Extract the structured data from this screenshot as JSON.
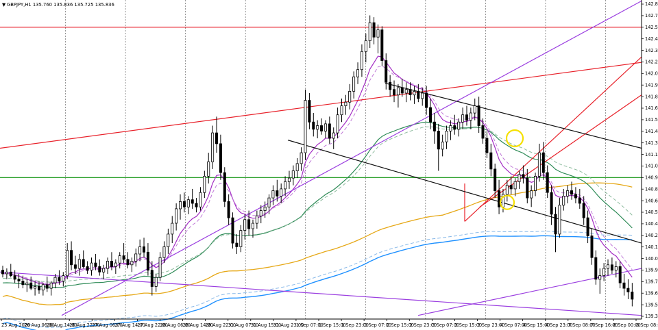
{
  "window": {
    "header_arrow": "▼",
    "header_text": "GBPJPY,H1  135.760 135.836 135.725 135.836"
  },
  "chart_data": {
    "type": "candlestick",
    "symbol": "GBPJPY",
    "timeframe": "H1",
    "ohlc_header": {
      "open": 135.76,
      "high": 135.836,
      "low": 135.725,
      "close": 135.836
    },
    "ylim": [
      139.39,
      142.845
    ],
    "yticks": [
      "142.845",
      "142.715",
      "142.590",
      "142.460",
      "142.335",
      "142.205",
      "142.075",
      "141.950",
      "141.820",
      "141.695",
      "141.565",
      "141.440",
      "141.310",
      "141.185",
      "141.055",
      "140.925",
      "140.800",
      "140.670",
      "140.545",
      "140.415",
      "140.290",
      "140.160",
      "140.035",
      "139.905",
      "139.775",
      "139.650",
      "139.520",
      "139.390"
    ],
    "xticks": [
      "25 Aug 2020",
      "26 Aug 06:00",
      "26 Aug 14:00",
      "26 Aug 22:00",
      "27 Aug 06:00",
      "27 Aug 14:00",
      "27 Aug 22:00",
      "28 Aug 06:00",
      "28 Aug 14:00",
      "28 Aug 22:00",
      "31 Aug 07:00",
      "31 Aug 15:00",
      "31 Aug 23:00",
      "1 Sep 07:00",
      "1 Sep 15:00",
      "1 Sep 23:00",
      "2 Sep 07:00",
      "2 Sep 15:00",
      "2 Sep 23:00",
      "3 Sep 07:00",
      "3 Sep 15:00",
      "3 Sep 23:00",
      "4 Sep 07:00",
      "4 Sep 15:00",
      "4 Sep 23:00",
      "7 Sep 08:00",
      "7 Sep 16:00",
      "8 Sep 00:00",
      "8 Sep 08:00"
    ],
    "day_separators": [
      "26 Aug",
      "27 Aug",
      "28 Aug",
      "31 Aug",
      "1 Sep",
      "2 Sep",
      "3 Sep",
      "4 Sep",
      "7 Sep",
      "8 Sep"
    ],
    "candles": [
      [
        139.9,
        139.95,
        139.82,
        139.86
      ],
      [
        139.86,
        139.92,
        139.8,
        139.88
      ],
      [
        139.88,
        139.97,
        139.82,
        139.84
      ],
      [
        139.84,
        139.9,
        139.76,
        139.8
      ],
      [
        139.8,
        139.86,
        139.7,
        139.78
      ],
      [
        139.78,
        139.84,
        139.7,
        139.74
      ],
      [
        139.74,
        139.8,
        139.66,
        139.76
      ],
      [
        139.76,
        139.83,
        139.68,
        139.7
      ],
      [
        139.7,
        139.78,
        139.62,
        139.72
      ],
      [
        139.72,
        139.78,
        139.64,
        139.68
      ],
      [
        139.68,
        139.76,
        139.62,
        139.74
      ],
      [
        139.74,
        139.83,
        139.66,
        139.7
      ],
      [
        139.7,
        139.78,
        139.62,
        139.76
      ],
      [
        139.76,
        139.86,
        139.7,
        139.82
      ],
      [
        139.82,
        139.9,
        139.74,
        139.78
      ],
      [
        139.78,
        139.88,
        139.72,
        139.84
      ],
      [
        139.84,
        140.2,
        139.8,
        140.12
      ],
      [
        140.12,
        140.22,
        139.9,
        139.96
      ],
      [
        139.96,
        140.06,
        139.86,
        139.92
      ],
      [
        139.92,
        140.08,
        139.84,
        140.02
      ],
      [
        140.02,
        140.12,
        139.92,
        139.94
      ],
      [
        139.94,
        140.0,
        139.86,
        139.9
      ],
      [
        139.9,
        140.04,
        139.84,
        139.98
      ],
      [
        139.98,
        140.08,
        139.9,
        139.94
      ],
      [
        139.94,
        140.02,
        139.84,
        139.88
      ],
      [
        139.88,
        139.96,
        139.8,
        139.92
      ],
      [
        139.92,
        140.04,
        139.86,
        140.0
      ],
      [
        140.0,
        140.1,
        139.9,
        139.94
      ],
      [
        139.94,
        140.02,
        139.86,
        139.98
      ],
      [
        139.98,
        140.1,
        139.92,
        140.06
      ],
      [
        140.06,
        140.2,
        139.98,
        140.02
      ],
      [
        140.02,
        140.1,
        139.92,
        139.96
      ],
      [
        139.96,
        140.04,
        139.88,
        140.0
      ],
      [
        140.0,
        140.14,
        139.94,
        140.08
      ],
      [
        140.08,
        140.24,
        140.0,
        140.16
      ],
      [
        140.16,
        140.26,
        140.04,
        140.1
      ],
      [
        140.1,
        140.2,
        139.84,
        139.9
      ],
      [
        139.9,
        140.0,
        139.62,
        139.72
      ],
      [
        139.72,
        139.86,
        139.66,
        139.82
      ],
      [
        139.82,
        140.1,
        139.78,
        140.04
      ],
      [
        140.04,
        140.22,
        139.98,
        140.16
      ],
      [
        140.16,
        140.36,
        140.08,
        140.3
      ],
      [
        140.3,
        140.5,
        140.2,
        140.42
      ],
      [
        140.42,
        140.64,
        140.34,
        140.58
      ],
      [
        140.58,
        140.74,
        140.46,
        140.66
      ],
      [
        140.66,
        140.76,
        140.54,
        140.6
      ],
      [
        140.6,
        140.72,
        140.52,
        140.68
      ],
      [
        140.68,
        140.8,
        140.58,
        140.64
      ],
      [
        140.64,
        140.7,
        140.54,
        140.6
      ],
      [
        140.6,
        140.82,
        140.56,
        140.76
      ],
      [
        140.76,
        141.0,
        140.7,
        140.94
      ],
      [
        140.94,
        141.2,
        140.86,
        141.1
      ],
      [
        141.1,
        141.5,
        141.02,
        141.42
      ],
      [
        141.42,
        141.6,
        141.2,
        141.3
      ],
      [
        141.3,
        141.4,
        140.9,
        140.98
      ],
      [
        140.98,
        141.04,
        140.6,
        140.66
      ],
      [
        140.66,
        140.74,
        140.4,
        140.48
      ],
      [
        140.48,
        140.54,
        140.14,
        140.2
      ],
      [
        140.2,
        140.3,
        140.08,
        140.16
      ],
      [
        140.16,
        140.4,
        140.1,
        140.34
      ],
      [
        140.34,
        140.52,
        140.24,
        140.46
      ],
      [
        140.46,
        140.56,
        140.28,
        140.36
      ],
      [
        140.36,
        140.46,
        140.26,
        140.42
      ],
      [
        140.42,
        140.56,
        140.36,
        140.5
      ],
      [
        140.5,
        140.62,
        140.42,
        140.56
      ],
      [
        140.56,
        140.66,
        140.48,
        140.6
      ],
      [
        140.6,
        140.74,
        140.52,
        140.7
      ],
      [
        140.7,
        140.84,
        140.62,
        140.78
      ],
      [
        140.78,
        140.9,
        140.66,
        140.72
      ],
      [
        140.72,
        140.86,
        140.64,
        140.8
      ],
      [
        140.8,
        140.94,
        140.72,
        140.88
      ],
      [
        140.88,
        141.0,
        140.8,
        140.92
      ],
      [
        140.92,
        141.06,
        140.84,
        141.0
      ],
      [
        141.0,
        141.14,
        140.92,
        141.08
      ],
      [
        141.08,
        141.26,
        141.0,
        141.2
      ],
      [
        141.2,
        141.9,
        141.12,
        141.78
      ],
      [
        141.78,
        141.86,
        141.46,
        141.54
      ],
      [
        141.54,
        141.64,
        141.38,
        141.46
      ],
      [
        141.46,
        141.56,
        141.36,
        141.5
      ],
      [
        141.5,
        141.58,
        141.4,
        141.44
      ],
      [
        141.44,
        141.56,
        141.36,
        141.52
      ],
      [
        141.52,
        141.6,
        141.3,
        141.36
      ],
      [
        141.36,
        141.48,
        141.24,
        141.42
      ],
      [
        141.42,
        141.7,
        141.36,
        141.62
      ],
      [
        141.62,
        141.8,
        141.54,
        141.72
      ],
      [
        141.72,
        141.84,
        141.62,
        141.76
      ],
      [
        141.76,
        141.96,
        141.68,
        141.88
      ],
      [
        141.88,
        142.1,
        141.8,
        142.04
      ],
      [
        142.04,
        142.2,
        141.96,
        142.12
      ],
      [
        142.12,
        142.4,
        142.04,
        142.32
      ],
      [
        142.32,
        142.52,
        142.2,
        142.44
      ],
      [
        142.44,
        142.72,
        142.36,
        142.64
      ],
      [
        142.64,
        142.7,
        142.4,
        142.48
      ],
      [
        142.48,
        142.62,
        142.3,
        142.56
      ],
      [
        142.56,
        142.6,
        142.16,
        142.22
      ],
      [
        142.22,
        142.3,
        141.9,
        141.98
      ],
      [
        141.98,
        142.06,
        141.82,
        141.9
      ],
      [
        141.9,
        142.0,
        141.76,
        141.84
      ],
      [
        141.84,
        141.96,
        141.7,
        141.92
      ],
      [
        141.92,
        142.02,
        141.82,
        141.86
      ],
      [
        141.86,
        141.98,
        141.76,
        141.9
      ],
      [
        141.9,
        141.98,
        141.78,
        141.84
      ],
      [
        141.84,
        141.94,
        141.74,
        141.88
      ],
      [
        141.88,
        141.96,
        141.76,
        141.8
      ],
      [
        141.8,
        141.92,
        141.72,
        141.86
      ],
      [
        141.86,
        141.94,
        141.62,
        141.7
      ],
      [
        141.7,
        141.8,
        141.46,
        141.54
      ],
      [
        141.54,
        141.64,
        141.3,
        141.44
      ],
      [
        141.44,
        141.52,
        141.0,
        141.24
      ],
      [
        141.24,
        141.4,
        141.16,
        141.32
      ],
      [
        141.32,
        141.5,
        141.24,
        141.44
      ],
      [
        141.44,
        141.56,
        141.34,
        141.5
      ],
      [
        141.5,
        141.62,
        141.4,
        141.46
      ],
      [
        141.46,
        141.58,
        141.38,
        141.54
      ],
      [
        141.54,
        141.7,
        141.46,
        141.62
      ],
      [
        141.62,
        141.72,
        141.5,
        141.56
      ],
      [
        141.56,
        141.7,
        141.46,
        141.64
      ],
      [
        141.64,
        141.8,
        141.56,
        141.72
      ],
      [
        141.72,
        141.82,
        141.42,
        141.5
      ],
      [
        141.5,
        141.58,
        141.3,
        141.36
      ],
      [
        141.36,
        141.44,
        141.14,
        141.2
      ],
      [
        141.2,
        141.3,
        140.94,
        141.02
      ],
      [
        141.02,
        141.08,
        140.7,
        140.78
      ],
      [
        140.78,
        140.9,
        140.52,
        140.6
      ],
      [
        140.6,
        140.8,
        140.54,
        140.74
      ],
      [
        140.74,
        140.9,
        140.66,
        140.84
      ],
      [
        140.84,
        140.94,
        140.74,
        140.8
      ],
      [
        140.8,
        140.92,
        140.72,
        140.88
      ],
      [
        140.88,
        141.0,
        140.8,
        140.96
      ],
      [
        140.96,
        141.06,
        140.86,
        140.92
      ],
      [
        140.92,
        141.02,
        140.64,
        140.7
      ],
      [
        140.7,
        140.84,
        140.6,
        140.78
      ],
      [
        140.78,
        140.98,
        140.72,
        140.94
      ],
      [
        140.94,
        141.3,
        140.88,
        141.2
      ],
      [
        141.2,
        141.32,
        140.9,
        140.98
      ],
      [
        140.98,
        141.06,
        140.7,
        140.76
      ],
      [
        140.76,
        140.84,
        140.4,
        140.52
      ],
      [
        140.52,
        140.6,
        140.1,
        140.3
      ],
      [
        140.3,
        140.7,
        140.26,
        140.62
      ],
      [
        140.62,
        140.8,
        140.56,
        140.72
      ],
      [
        140.72,
        140.84,
        140.64,
        140.78
      ],
      [
        140.78,
        140.88,
        140.68,
        140.74
      ],
      [
        140.74,
        140.82,
        140.64,
        140.7
      ],
      [
        140.7,
        140.8,
        140.58,
        140.64
      ],
      [
        140.64,
        140.72,
        140.4,
        140.48
      ],
      [
        140.48,
        140.56,
        140.2,
        140.28
      ],
      [
        140.28,
        140.36,
        139.96,
        140.04
      ],
      [
        140.04,
        140.12,
        139.74,
        139.8
      ],
      [
        139.8,
        139.92,
        139.64,
        139.84
      ],
      [
        139.84,
        139.98,
        139.78,
        139.92
      ],
      [
        139.92,
        140.02,
        139.84,
        139.96
      ],
      [
        139.96,
        140.04,
        139.86,
        139.9
      ],
      [
        139.9,
        140.0,
        139.82,
        139.94
      ],
      [
        139.94,
        140.0,
        139.7,
        139.76
      ],
      [
        139.76,
        139.86,
        139.62,
        139.7
      ],
      [
        139.7,
        139.8,
        139.58,
        139.66
      ],
      [
        139.66,
        139.76,
        139.5,
        139.58
      ]
    ],
    "horizontal_lines": [
      {
        "name": "resistance-red",
        "price": 142.59,
        "color": "#e8212a"
      },
      {
        "name": "support-green",
        "price": 140.925,
        "color": "#2ca02c"
      }
    ],
    "indicator_colors": {
      "ema-fast": "#a32cc4",
      "ema-fast-dashed": "#c07ad8",
      "ma-green": "#2e8b57",
      "ma-green-dashed": "#8fbc9f",
      "ma-orange": "#e6a817",
      "ma-blue": "#1e90ff",
      "ma-blue-dashed": "#87b8e8"
    },
    "trendline_colors": {
      "red": "#e8212a",
      "purple": "#9b3fe0",
      "black": "#111111"
    },
    "highlight_color": "#f5e000",
    "grid": true,
    "background": "#ffffff"
  }
}
